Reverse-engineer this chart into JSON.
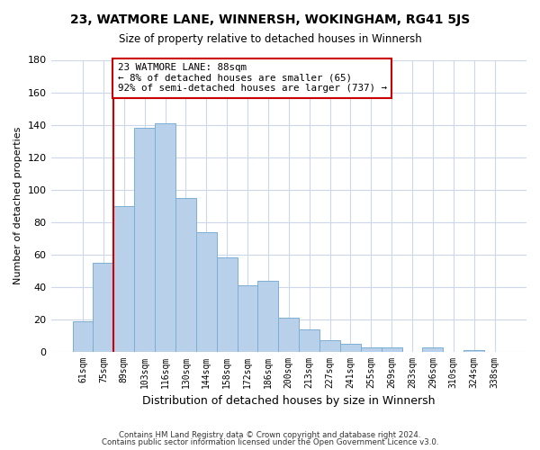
{
  "title": "23, WATMORE LANE, WINNERSH, WOKINGHAM, RG41 5JS",
  "subtitle": "Size of property relative to detached houses in Winnersh",
  "xlabel": "Distribution of detached houses by size in Winnersh",
  "ylabel": "Number of detached properties",
  "bar_labels": [
    "61sqm",
    "75sqm",
    "89sqm",
    "103sqm",
    "116sqm",
    "130sqm",
    "144sqm",
    "158sqm",
    "172sqm",
    "186sqm",
    "200sqm",
    "213sqm",
    "227sqm",
    "241sqm",
    "255sqm",
    "269sqm",
    "283sqm",
    "296sqm",
    "310sqm",
    "324sqm",
    "338sqm"
  ],
  "bar_heights": [
    19,
    55,
    90,
    138,
    141,
    95,
    74,
    58,
    41,
    44,
    21,
    14,
    7,
    5,
    3,
    3,
    0,
    3,
    0,
    1,
    0
  ],
  "bar_color": "#b8d0ea",
  "bar_edge_color": "#7aafd4",
  "vline_color": "#cc0000",
  "annotation_box_text": "23 WATMORE LANE: 88sqm\n← 8% of detached houses are smaller (65)\n92% of semi-detached houses are larger (737) →",
  "annotation_box_color": "#cc0000",
  "ylim": [
    0,
    180
  ],
  "yticks": [
    0,
    20,
    40,
    60,
    80,
    100,
    120,
    140,
    160,
    180
  ],
  "footer_line1": "Contains HM Land Registry data © Crown copyright and database right 2024.",
  "footer_line2": "Contains public sector information licensed under the Open Government Licence v3.0.",
  "bg_color": "#ffffff",
  "grid_color": "#ccd8ea"
}
